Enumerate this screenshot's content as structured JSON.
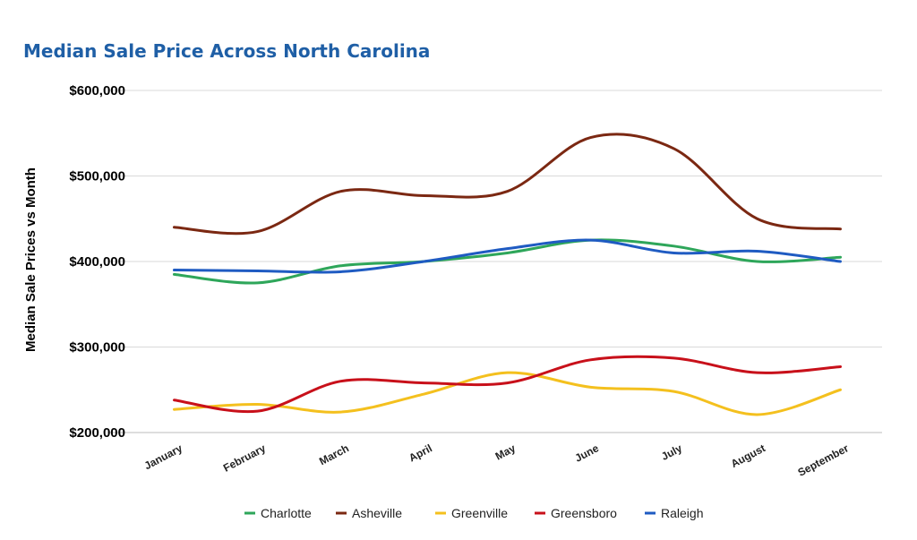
{
  "chart_data": {
    "type": "line",
    "title": "Median Sale Price Across North Carolina",
    "xlabel": "",
    "ylabel": "Median Sale Prices vs Month",
    "categories": [
      "January",
      "February",
      "March",
      "April",
      "May",
      "June",
      "July",
      "August",
      "September"
    ],
    "ylim": [
      200000,
      600000
    ],
    "yticks": [
      200000,
      300000,
      400000,
      500000,
      600000
    ],
    "ytick_labels": [
      "$200,000",
      "$300,000",
      "$400,000",
      "$500,000",
      "$600,000"
    ],
    "grid": true,
    "smooth": true,
    "legend": "bottom",
    "series": [
      {
        "name": "Charlotte",
        "color": "#2ea65a",
        "values": [
          385000,
          375000,
          395000,
          400000,
          410000,
          425000,
          418000,
          400000,
          405000
        ]
      },
      {
        "name": "Asheville",
        "color": "#7b2812",
        "values": [
          440000,
          435000,
          482000,
          477000,
          482000,
          545000,
          532000,
          450000,
          438000
        ]
      },
      {
        "name": "Greenville",
        "color": "#f4c01e",
        "values": [
          227000,
          233000,
          224000,
          245000,
          270000,
          253000,
          248000,
          221000,
          250000
        ]
      },
      {
        "name": "Greensboro",
        "color": "#c8101a",
        "values": [
          238000,
          225000,
          260000,
          258000,
          258000,
          285000,
          287000,
          270000,
          277000
        ]
      },
      {
        "name": "Raleigh",
        "color": "#1f5bc2",
        "values": [
          390000,
          389000,
          388000,
          400000,
          415000,
          425000,
          410000,
          412000,
          400000
        ]
      }
    ]
  }
}
